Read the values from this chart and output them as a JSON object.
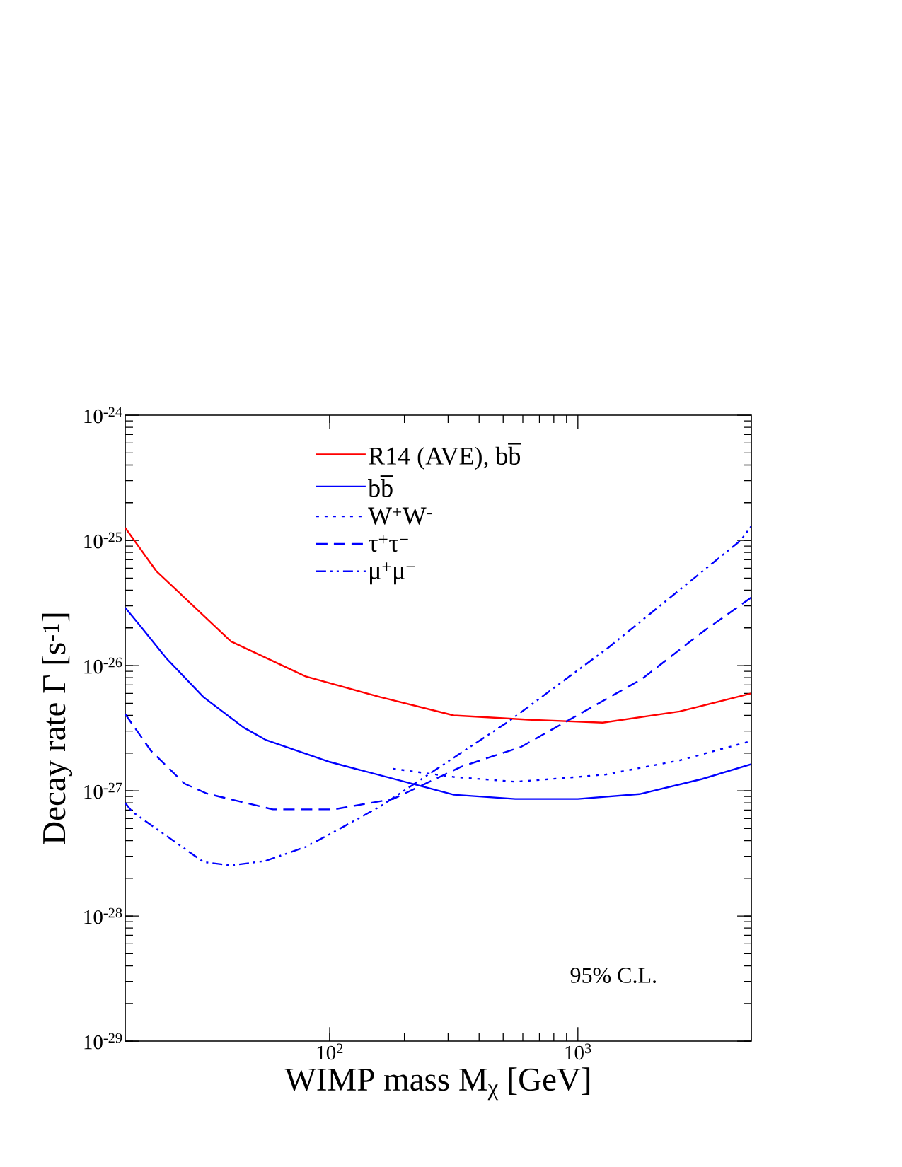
{
  "chart_data": {
    "type": "line",
    "xlabel": "WIMP mass M$_{χ}$ [GeV]",
    "ylabel": "Decay rate   Γ [s$^{-1}$]",
    "log": "xy",
    "xlim": [
      15,
      5000
    ],
    "ylim": [
      1e-29,
      1e-24
    ],
    "xticks": [
      {
        "value": 100,
        "label": "10$^{2}$"
      },
      {
        "value": 1000,
        "label": "10$^{3}$"
      }
    ],
    "yticks": [
      {
        "value": 1e-29,
        "label": "10$^{-29}$"
      },
      {
        "value": 1e-28,
        "label": "10$^{-28}$"
      },
      {
        "value": 1e-27,
        "label": "10$^{-27}$"
      },
      {
        "value": 1e-26,
        "label": "10$^{-26}$"
      },
      {
        "value": 1e-25,
        "label": "10$^{-25}$"
      },
      {
        "value": 1e-24,
        "label": "10$^{-24}$"
      }
    ],
    "grid": false,
    "legend": "top",
    "marker": "none",
    "annotations": [
      "95% C.L."
    ],
    "series": [
      {
        "name": "R14 (AVE), bb̅",
        "color": "#ff0000",
        "line_style": "solid",
        "x": [
          15,
          20,
          40,
          80,
          160,
          316,
          630,
          1260,
          2570,
          5000
        ],
        "values": [
          1.26e-25,
          5.7e-26,
          1.56e-26,
          8.2e-27,
          5.6e-27,
          4e-27,
          3.7e-27,
          3.5e-27,
          4.3e-27,
          6e-27
        ]
      },
      {
        "name": "bb̅",
        "color": "#0000ff",
        "line_style": "solid",
        "x": [
          15,
          17.5,
          22,
          31,
          45,
          55,
          100,
          316,
          560,
          1000,
          1770,
          3160,
          5000
        ],
        "values": [
          2.9e-26,
          2e-26,
          1.14e-26,
          5.6e-27,
          3.2e-27,
          2.56e-27,
          1.7e-27,
          9.3e-28,
          8.6e-28,
          8.6e-28,
          9.4e-28,
          1.24e-27,
          1.63e-27
        ]
      },
      {
        "name": "W$^{+}$W$^{-}$",
        "color": "#0000ff",
        "line_style": "dotted",
        "x": [
          180,
          316,
          560,
          1000,
          1300,
          2570,
          5000
        ],
        "values": [
          1.5e-27,
          1.29e-27,
          1.18e-27,
          1.29e-27,
          1.35e-27,
          1.75e-27,
          2.5e-27
        ]
      },
      {
        "name": "τ$^{+}$τ$^{−}$",
        "color": "#0000ff",
        "line_style": "dashed",
        "x": [
          15,
          19,
          26,
          32,
          59,
          104,
          180,
          340,
          590,
          1810,
          3160,
          5000
        ],
        "values": [
          4.1e-27,
          2.1e-27,
          1.14e-27,
          9.5e-28,
          7.1e-28,
          7.1e-28,
          8.6e-28,
          1.56e-27,
          2.24e-27,
          7.8e-27,
          1.84e-26,
          3.5e-26
        ]
      },
      {
        "name": "μ$^{+}$μ$^{−}$",
        "color": "#0000ff",
        "line_style": "dashdotdotted",
        "x": [
          15,
          16,
          31,
          40,
          55,
          80,
          100,
          160,
          250,
          525,
          1320,
          4530,
          5000
        ],
        "values": [
          8e-28,
          6.8e-28,
          2.7e-28,
          2.53e-28,
          2.75e-28,
          3.56e-28,
          4.5e-28,
          7.5e-28,
          1.35e-27,
          3.57e-27,
          1.38e-26,
          1e-25,
          1.3e-25
        ]
      }
    ]
  }
}
